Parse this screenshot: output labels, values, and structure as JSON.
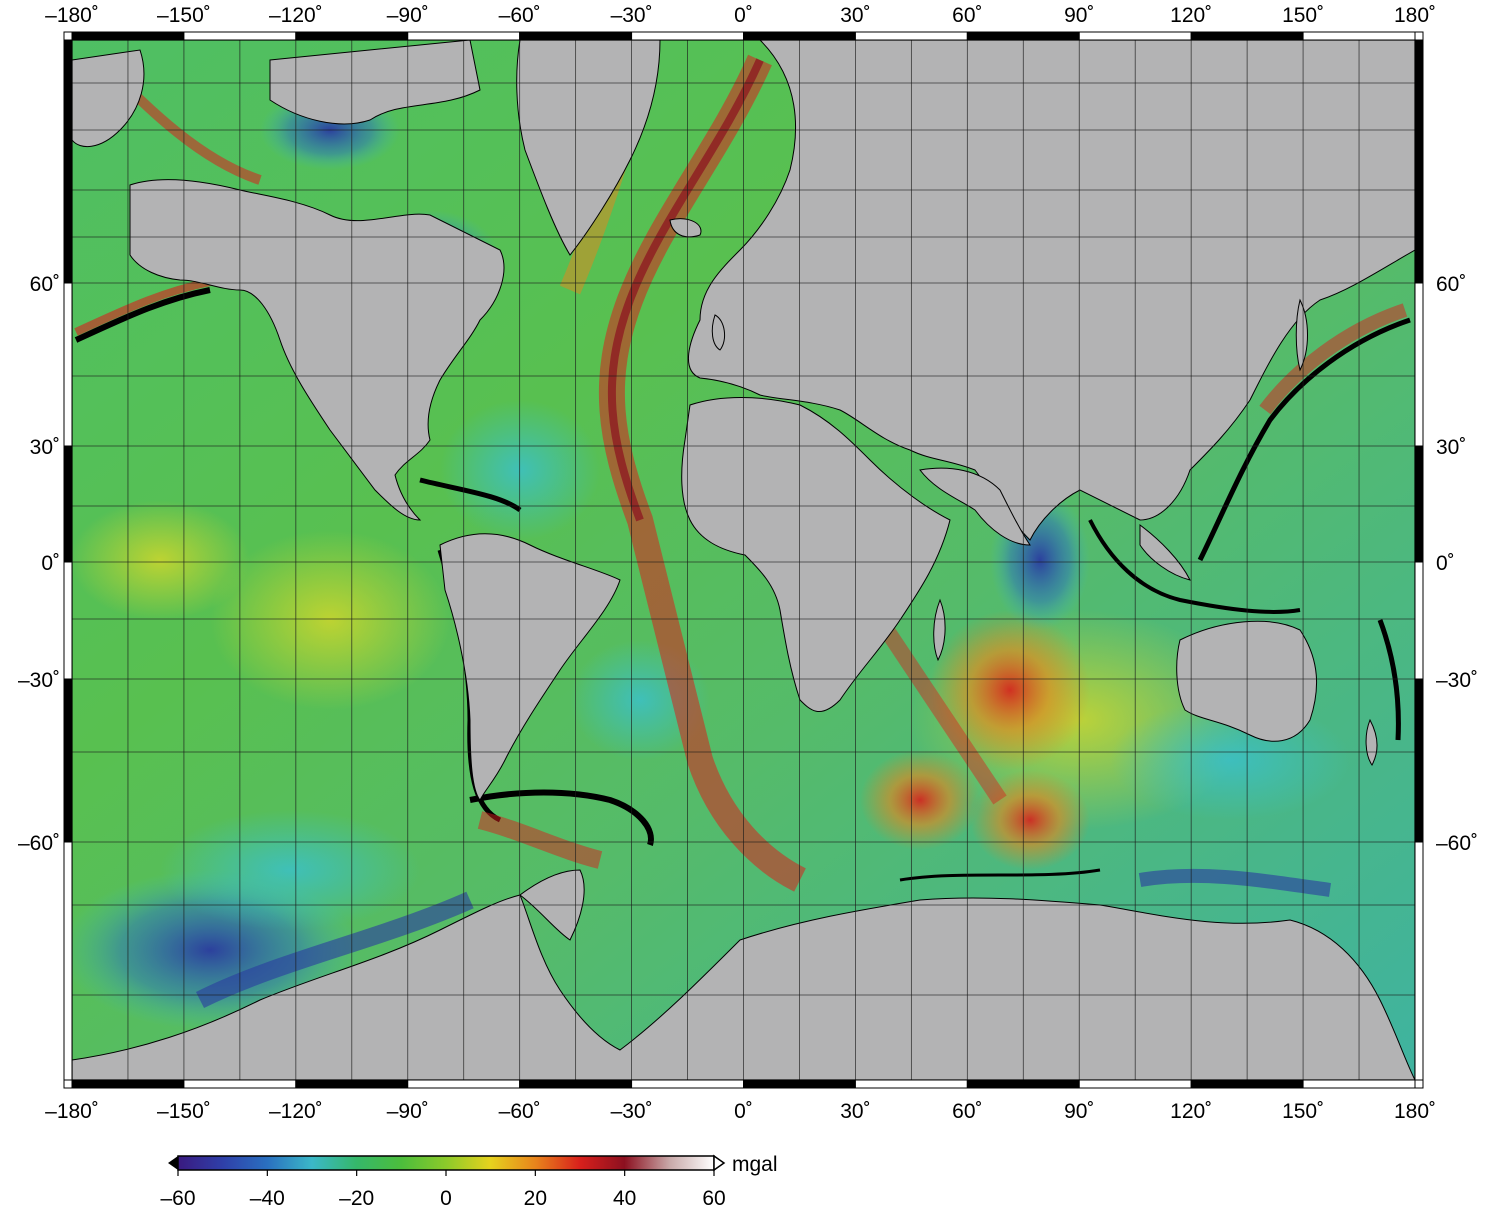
{
  "map": {
    "longitude_ticks": [
      {
        "value": -180,
        "label": "–180˚"
      },
      {
        "value": -150,
        "label": "–150˚"
      },
      {
        "value": -120,
        "label": "–120˚"
      },
      {
        "value": -90,
        "label": "–90˚"
      },
      {
        "value": -60,
        "label": "–60˚"
      },
      {
        "value": -30,
        "label": "–30˚"
      },
      {
        "value": 0,
        "label": "0˚"
      },
      {
        "value": 30,
        "label": "30˚"
      },
      {
        "value": 60,
        "label": "60˚"
      },
      {
        "value": 90,
        "label": "90˚"
      },
      {
        "value": 120,
        "label": "120˚"
      },
      {
        "value": 150,
        "label": "150˚"
      },
      {
        "value": 180,
        "label": "180˚"
      }
    ],
    "latitude_ticks_left": [
      {
        "value": 60,
        "label": "60˚"
      },
      {
        "value": 30,
        "label": "30˚"
      },
      {
        "value": 0,
        "label": "0˚"
      },
      {
        "value": -30,
        "label": "–30˚"
      },
      {
        "value": -60,
        "label": "–60˚"
      }
    ],
    "latitude_ticks_right": [
      {
        "value": 60,
        "label": "60˚"
      },
      {
        "value": 30,
        "label": "30˚"
      },
      {
        "value": 0,
        "label": "0˚"
      },
      {
        "value": -30,
        "label": "–30˚"
      },
      {
        "value": -60,
        "label": "–60˚"
      }
    ],
    "colors": {
      "land": "#b3b3b4",
      "ocean_base": "#4cb85c",
      "grid": "#2a2a2a"
    }
  },
  "colorbar": {
    "unit": "mgal",
    "ticks": [
      "–60",
      "–40",
      "–20",
      "0",
      "20",
      "40",
      "60"
    ],
    "min": -60,
    "max": 60,
    "stops": [
      "#3a1a80",
      "#2f3fa8",
      "#2a70c0",
      "#3bb8c8",
      "#35b86a",
      "#4cbd3c",
      "#8cca2a",
      "#e6d21e",
      "#e8841c",
      "#d8201c",
      "#8c1020",
      "#c8a8a8",
      "#ffffff"
    ]
  }
}
